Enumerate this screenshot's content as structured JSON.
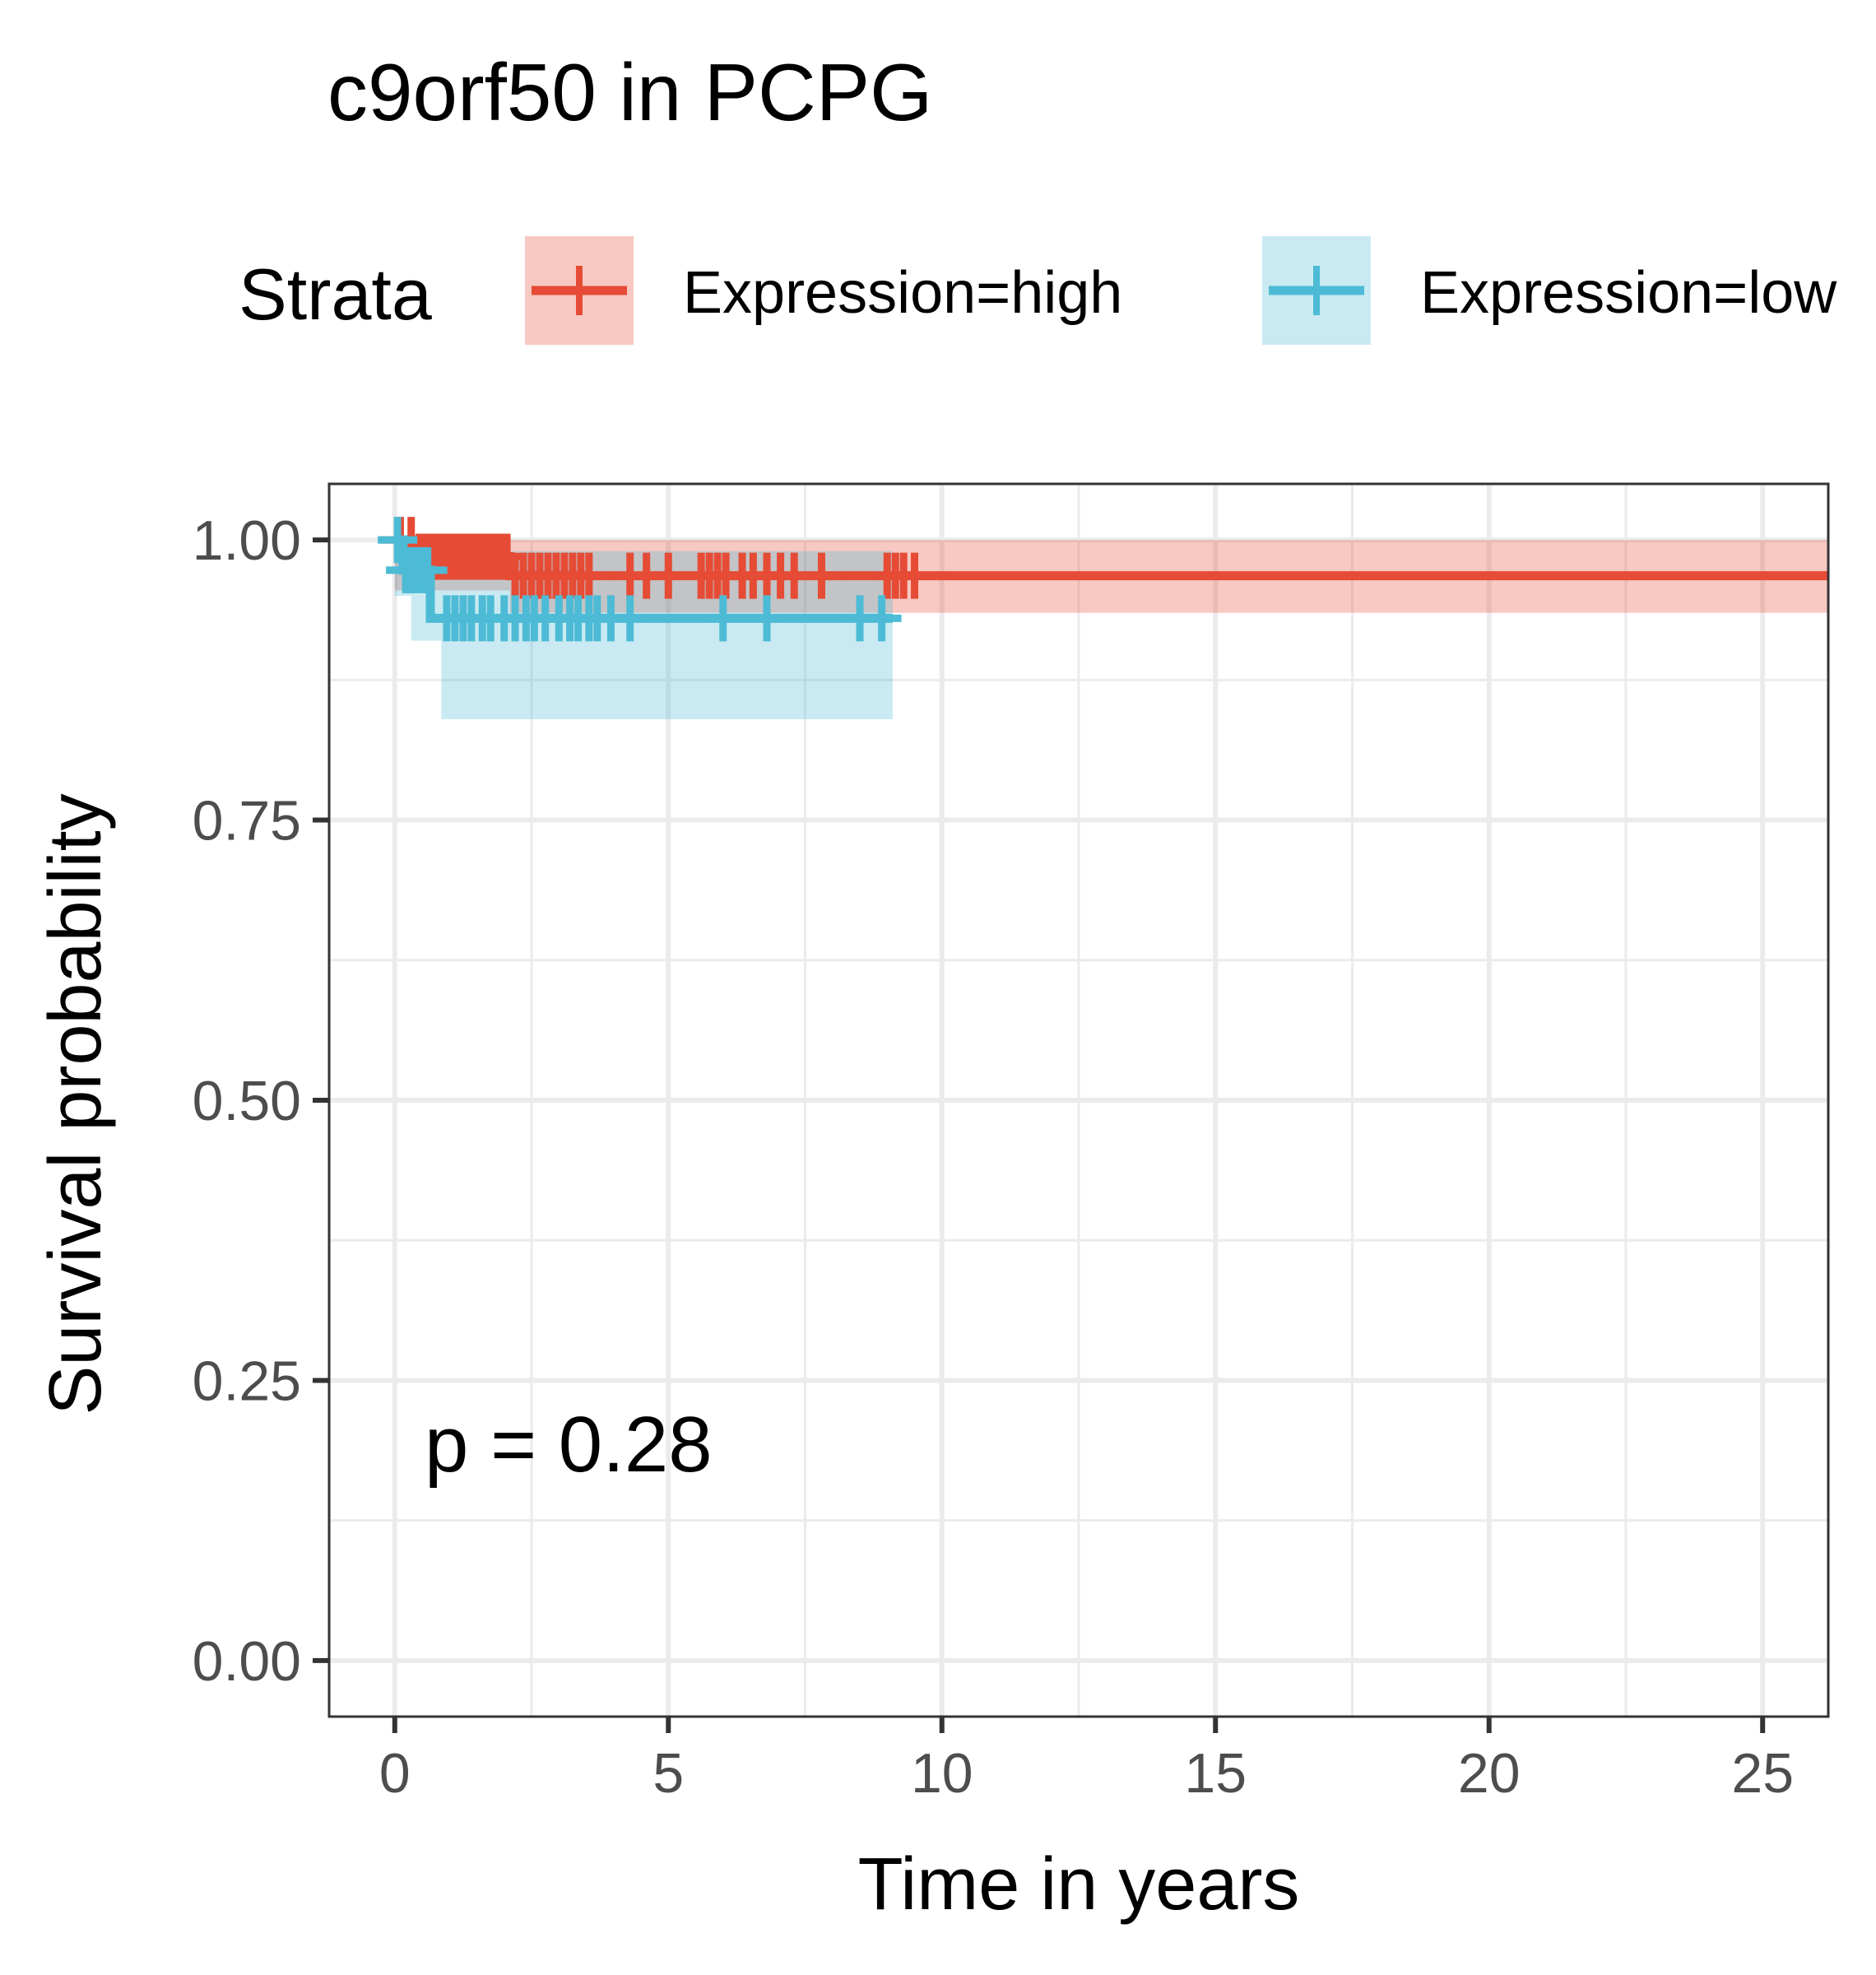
{
  "chart_data": {
    "type": "line",
    "title": "c9orf50 in PCPG",
    "xlabel": "Time in years",
    "ylabel": "Survival probability",
    "xlim": [
      -1.2,
      26.2
    ],
    "ylim": [
      -0.05,
      1.05
    ],
    "x_ticks": [
      0,
      5,
      10,
      15,
      20,
      25
    ],
    "x_tick_labels": [
      "0",
      "5",
      "10",
      "15",
      "20",
      "25"
    ],
    "y_ticks": [
      0,
      0.25,
      0.5,
      0.75,
      1.0
    ],
    "y_tick_labels": [
      "0.00",
      "0.25",
      "0.50",
      "0.75",
      "1.00"
    ],
    "grid": true,
    "legend": {
      "title": "Strata",
      "position": "top",
      "entries": [
        "Expression=high",
        "Expression=low"
      ]
    },
    "annotation": "p = 0.28",
    "series": [
      {
        "name": "Expression=high",
        "color": "#E64B35",
        "steps": [
          [
            0,
            1.0
          ],
          [
            0.4,
            0.985
          ],
          [
            2.1,
            0.968
          ],
          [
            26.2,
            0.968
          ]
        ],
        "ci_band": [
          [
            0,
            0.955,
            1.0
          ],
          [
            2.1,
            0.935,
            1.0
          ],
          [
            26.2,
            0.935,
            1.0
          ]
        ],
        "censor_times": [
          0.1,
          0.3,
          0.45,
          0.55,
          0.65,
          0.75,
          0.85,
          0.95,
          1.05,
          1.15,
          1.25,
          1.35,
          1.45,
          1.55,
          1.65,
          1.75,
          1.85,
          1.95,
          2.05,
          2.2,
          2.35,
          2.5,
          2.65,
          2.8,
          2.95,
          3.1,
          3.25,
          3.4,
          3.55,
          4.3,
          4.6,
          5.0,
          5.6,
          5.75,
          5.9,
          6.05,
          6.35,
          6.55,
          6.8,
          7.05,
          7.3,
          7.8,
          9.0,
          9.15,
          9.3,
          9.5
        ]
      },
      {
        "name": "Expression=low",
        "color": "#4DBBD5",
        "steps": [
          [
            0,
            1.0
          ],
          [
            0.15,
            0.973
          ],
          [
            0.65,
            0.93
          ],
          [
            9.1,
            0.93
          ]
        ],
        "ci_band": [
          [
            0,
            0.95,
            1.0
          ],
          [
            0.3,
            0.91,
            1.0
          ],
          [
            0.85,
            0.84,
            0.99
          ],
          [
            9.1,
            0.84,
            0.99
          ]
        ],
        "censor_times": [
          0.05,
          0.2,
          0.3,
          0.4,
          0.5,
          0.6,
          0.95,
          1.1,
          1.25,
          1.4,
          1.6,
          1.75,
          2.0,
          2.2,
          2.4,
          2.55,
          2.75,
          3.0,
          3.2,
          3.35,
          3.55,
          3.7,
          3.95,
          4.3,
          6.0,
          6.8,
          8.5,
          8.9
        ]
      }
    ]
  }
}
